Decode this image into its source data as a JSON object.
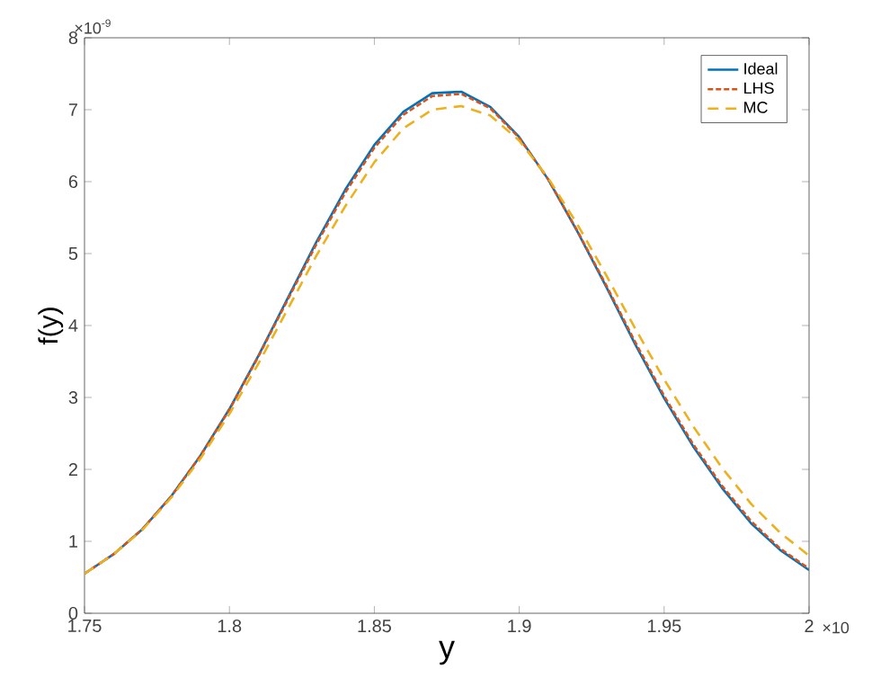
{
  "chart_data": {
    "type": "line",
    "xlabel": "y",
    "ylabel": "f(y)",
    "x": [
      1.75,
      1.76,
      1.77,
      1.78,
      1.79,
      1.8,
      1.81,
      1.82,
      1.83,
      1.84,
      1.85,
      1.86,
      1.87,
      1.88,
      1.89,
      1.9,
      1.91,
      1.92,
      1.93,
      1.94,
      1.95,
      1.96,
      1.97,
      1.98,
      1.99,
      2.0
    ],
    "series": [
      {
        "name": "Ideal",
        "color": "#0072bd",
        "line_style": "solid",
        "values": [
          0.55,
          0.82,
          1.17,
          1.63,
          2.19,
          2.84,
          3.58,
          4.37,
          5.16,
          5.89,
          6.51,
          6.97,
          7.23,
          7.25,
          7.04,
          6.62,
          6.03,
          5.31,
          4.54,
          3.74,
          2.99,
          2.32,
          1.74,
          1.25,
          0.88,
          0.6
        ]
      },
      {
        "name": "LHS",
        "color": "#d95319",
        "line_style": "dotted",
        "values": [
          0.55,
          0.82,
          1.17,
          1.63,
          2.19,
          2.83,
          3.57,
          4.35,
          5.13,
          5.85,
          6.47,
          6.93,
          7.19,
          7.22,
          7.02,
          6.61,
          6.03,
          5.32,
          4.56,
          3.77,
          3.02,
          2.35,
          1.77,
          1.28,
          0.9,
          0.62
        ]
      },
      {
        "name": "MC",
        "color": "#edb120",
        "line_style": "dashed",
        "values": [
          0.55,
          0.82,
          1.16,
          1.61,
          2.15,
          2.77,
          3.47,
          4.22,
          4.97,
          5.66,
          6.27,
          6.74,
          7.0,
          7.05,
          6.92,
          6.57,
          6.05,
          5.41,
          4.7,
          3.96,
          3.25,
          2.6,
          2.02,
          1.52,
          1.12,
          0.8
        ]
      }
    ],
    "xlim": [
      1.75,
      2
    ],
    "ylim": [
      0,
      8
    ],
    "xticks": [
      1.75,
      1.8,
      1.85,
      1.9,
      1.95,
      2
    ],
    "yticks": [
      0,
      1,
      2,
      3,
      4,
      5,
      6,
      7,
      8
    ],
    "grid": false,
    "legend": "top right",
    "annotations": [
      "×10$^{-9}$",
      "×10"
    ]
  }
}
